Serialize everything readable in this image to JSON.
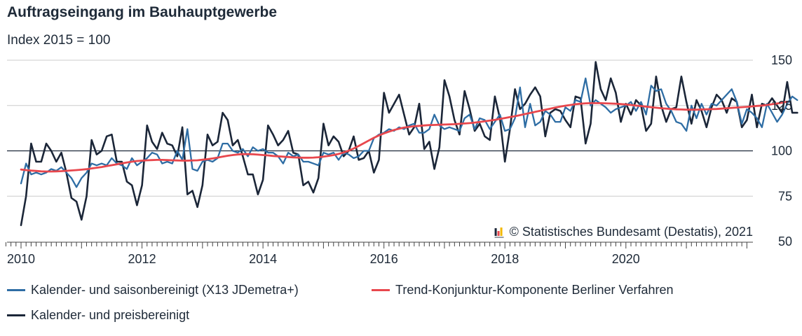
{
  "title": "Auftragseingang im Bauhauptgewerbe",
  "subtitle": "Index 2015 = 100",
  "source": "© Statistisches Bundesamt (Destatis), 2021",
  "colors": {
    "saison": "#2e6da4",
    "trend": "#e8474d",
    "preis": "#1b2638",
    "grid": "#cccccc",
    "refline": "#1b2638",
    "axis": "#444444"
  },
  "legend": [
    {
      "label": "Kalender- und saisonbereinigt (X13 JDemetra+)",
      "series": "saison"
    },
    {
      "label": "Trend-Konjunktur-Komponente Berliner Verfahren",
      "series": "trend"
    },
    {
      "label": "Kalender- und preisbereinigt",
      "series": "preis"
    }
  ],
  "chart_data": {
    "type": "line",
    "title": "Auftragseingang im Bauhauptgewerbe",
    "subtitle": "Index 2015 = 100",
    "x_start": "2010-01",
    "x_frequency": "monthly",
    "x_ticks": [
      "2010",
      "2012",
      "2014",
      "2016",
      "2018",
      "2020"
    ],
    "y_ticks": [
      50,
      75,
      100,
      125,
      150
    ],
    "ylim": [
      50,
      150
    ],
    "reference_line": 100,
    "grid": true,
    "y_axis_position": "right",
    "series": [
      {
        "name": "Kalender- und saisonbereinigt (X13 JDemetra+)",
        "key": "saison",
        "values": [
          82,
          93,
          87,
          88,
          87,
          88,
          90,
          89,
          91,
          88,
          85,
          80,
          85,
          88,
          93,
          92,
          93,
          92,
          96,
          93,
          92,
          90,
          96,
          92,
          94,
          96,
          99,
          98,
          93,
          94,
          93,
          100,
          95,
          112,
          90,
          89,
          94,
          95,
          94,
          96,
          104,
          104,
          100,
          99,
          101,
          97,
          102,
          100,
          101,
          99,
          99,
          97,
          93,
          99,
          97,
          98,
          94,
          94,
          93,
          92,
          99,
          98,
          99,
          95,
          99,
          98,
          96,
          97,
          100,
          100,
          107,
          109,
          110,
          112,
          111,
          113,
          112,
          114,
          115,
          110,
          110,
          112,
          120,
          114,
          112,
          113,
          112,
          111,
          118,
          120,
          112,
          118,
          117,
          112,
          116,
          120,
          111,
          112,
          118,
          135,
          113,
          126,
          114,
          116,
          122,
          120,
          116,
          116,
          124,
          122,
          128,
          127,
          140,
          125,
          128,
          126,
          124,
          121,
          123,
          124,
          125,
          127,
          122,
          127,
          120,
          136,
          133,
          134,
          126,
          122,
          116,
          115,
          111,
          125,
          118,
          126,
          120,
          126,
          125,
          128,
          131,
          134,
          127,
          115,
          123,
          121,
          118,
          113,
          126,
          121,
          116,
          120,
          126,
          130,
          128
        ]
      },
      {
        "name": "Trend-Konjunktur-Komponente Berliner Verfahren",
        "key": "trend",
        "values": [
          89.7,
          89.4,
          89.1,
          88.9,
          88.7,
          88.6,
          88.6,
          88.7,
          88.8,
          89.0,
          89.2,
          89.4,
          89.6,
          89.9,
          90.3,
          90.7,
          91.1,
          91.6,
          92.1,
          92.6,
          93.1,
          93.6,
          94.0,
          94.4,
          94.6,
          94.8,
          94.9,
          95.0,
          95.0,
          94.9,
          94.8,
          94.7,
          94.6,
          94.6,
          94.7,
          94.8,
          95.1,
          95.4,
          95.8,
          96.3,
          96.8,
          97.3,
          97.7,
          98.0,
          98.2,
          98.2,
          98.1,
          97.9,
          97.7,
          97.5,
          97.2,
          97.0,
          96.8,
          96.6,
          96.4,
          96.3,
          96.2,
          96.2,
          96.3,
          96.5,
          96.8,
          97.2,
          97.7,
          98.3,
          99.1,
          100.1,
          101.3,
          102.7,
          104.2,
          105.7,
          107.2,
          108.5,
          109.6,
          110.6,
          111.5,
          112.2,
          112.8,
          113.2,
          113.6,
          113.8,
          114.0,
          114.2,
          114.3,
          114.4,
          114.5,
          114.6,
          114.7,
          114.9,
          115.1,
          115.3,
          115.6,
          115.9,
          116.3,
          116.7,
          117.1,
          117.6,
          118.1,
          118.6,
          119.1,
          119.7,
          120.3,
          120.9,
          121.5,
          122.1,
          122.7,
          123.3,
          123.9,
          124.4,
          124.9,
          125.3,
          125.7,
          126.0,
          126.2,
          126.3,
          126.3,
          126.3,
          126.2,
          126.1,
          126.0,
          125.8,
          125.6,
          125.3,
          125.0,
          124.7,
          124.4,
          124.1,
          123.8,
          123.5,
          123.3,
          123.1,
          122.9,
          122.8,
          122.7,
          122.7,
          122.7,
          122.8,
          122.9,
          123.0,
          123.1,
          123.3,
          123.5,
          123.7,
          123.9,
          124.1,
          124.3,
          124.5,
          124.8,
          125.0,
          125.3,
          125.7,
          126.1,
          126.6,
          127.1
        ]
      },
      {
        "name": "Kalender- und preisbereinigt",
        "key": "preis",
        "values": [
          59,
          75,
          104,
          94,
          94,
          104,
          100,
          94,
          99,
          88,
          74,
          72,
          62,
          75,
          106,
          98,
          100,
          108,
          109,
          94,
          94,
          83,
          81,
          70,
          81,
          114,
          105,
          101,
          110,
          104,
          103,
          97,
          113,
          76,
          78,
          69,
          81,
          109,
          103,
          105,
          121,
          117,
          103,
          106,
          97,
          87,
          87,
          76,
          84,
          114,
          109,
          103,
          106,
          111,
          99,
          98,
          81,
          83,
          77,
          85,
          115,
          103,
          108,
          105,
          97,
          100,
          108,
          95,
          96,
          100,
          88,
          95,
          132,
          121,
          126,
          131,
          120,
          109,
          113,
          126,
          101,
          105,
          90,
          102,
          139,
          130,
          117,
          109,
          133,
          123,
          111,
          115,
          108,
          106,
          130,
          118,
          94,
          112,
          134,
          123,
          126,
          131,
          135,
          130,
          108,
          121,
          123,
          122,
          117,
          113,
          130,
          129,
          104,
          115,
          149,
          134,
          128,
          140,
          132,
          116,
          126,
          120,
          128,
          125,
          111,
          115,
          141,
          125,
          116,
          123,
          124,
          141,
          127,
          115,
          128,
          122,
          113,
          124,
          131,
          128,
          121,
          129,
          127,
          113,
          117,
          131,
          113,
          126,
          125,
          129,
          125,
          121,
          138,
          121,
          121
        ]
      }
    ]
  }
}
